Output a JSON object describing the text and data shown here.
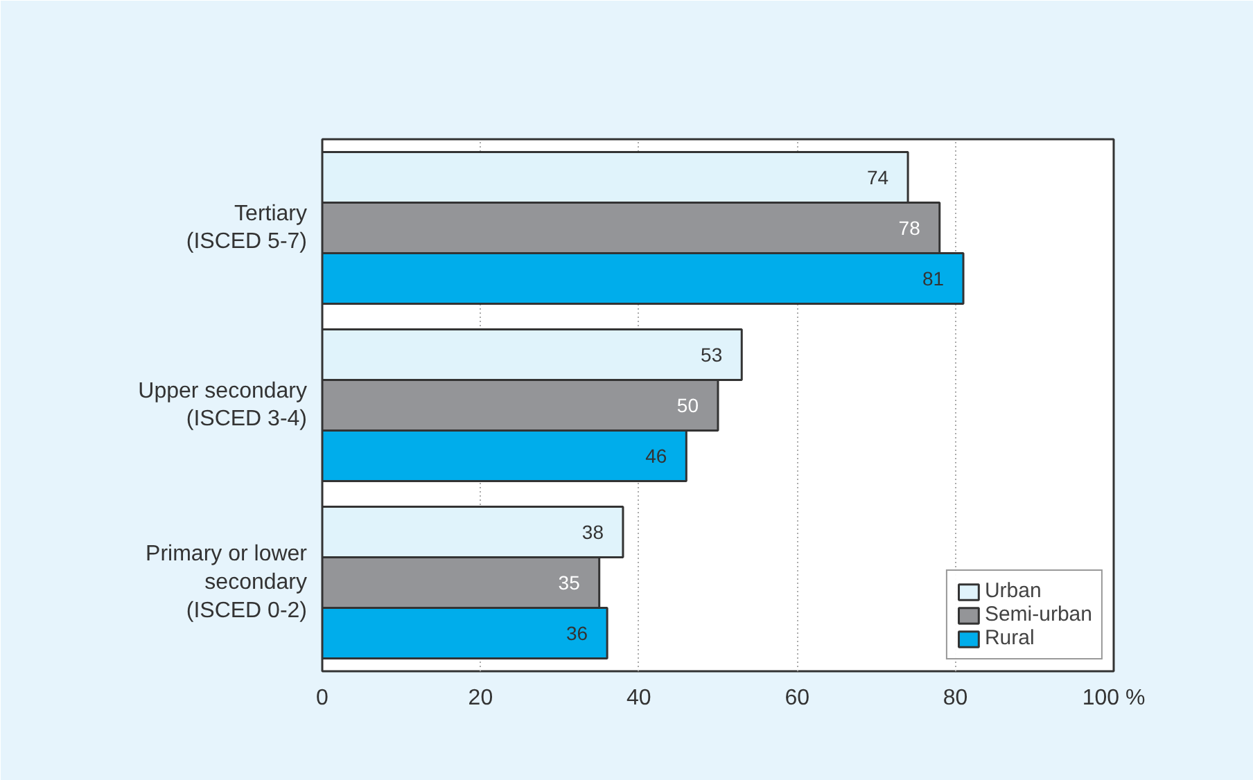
{
  "chart_data": {
    "type": "bar",
    "orientation": "horizontal",
    "categories": [
      "Tertiary\n(ISCED 5-7)",
      "Upper secondary\n(ISCED 3-4)",
      "Primary or lower\nsecondary\n(ISCED 0-2)"
    ],
    "series": [
      {
        "name": "Urban",
        "color": "#e0f3fb",
        "values": [
          74,
          53,
          38
        ]
      },
      {
        "name": "Semi-urban",
        "color": "#949598",
        "values": [
          78,
          50,
          35
        ]
      },
      {
        "name": "Rural",
        "color": "#00adeb",
        "values": [
          81,
          46,
          36
        ]
      }
    ],
    "xlim": [
      0,
      100
    ],
    "xticks": [
      0,
      20,
      40,
      60,
      80,
      {
        "value": 100,
        "label": "100 %"
      }
    ],
    "grid": "x",
    "legend": "bottom right",
    "data_labels": true
  }
}
